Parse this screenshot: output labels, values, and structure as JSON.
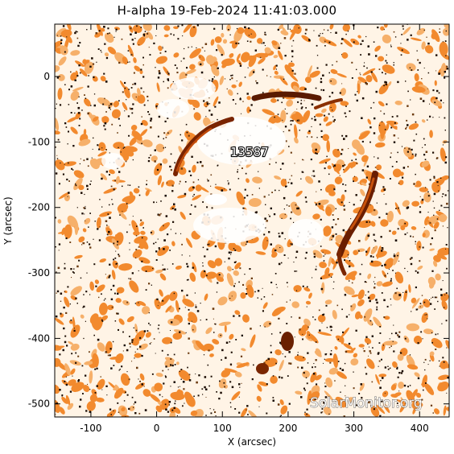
{
  "title": "H-alpha 19-Feb-2024 11:41:03.000",
  "axes": {
    "xlabel": "X (arcsec)",
    "ylabel": "Y (arcsec)",
    "x_ticks": [
      -100,
      0,
      100,
      200,
      300,
      400
    ],
    "y_ticks": [
      0,
      -100,
      -200,
      -300,
      -400,
      -500
    ],
    "xlim": [
      -155,
      445
    ],
    "ylim": [
      -520,
      80
    ]
  },
  "region_label": "13587",
  "watermark": "SolarMonitor.org",
  "colors": {
    "background": "#ffffff",
    "map_white": "#fff4e6",
    "orange": "#f28a2e",
    "light_orange": "#f6b06a",
    "dark": "#1a0a00",
    "filament": "#8a2a00"
  }
}
